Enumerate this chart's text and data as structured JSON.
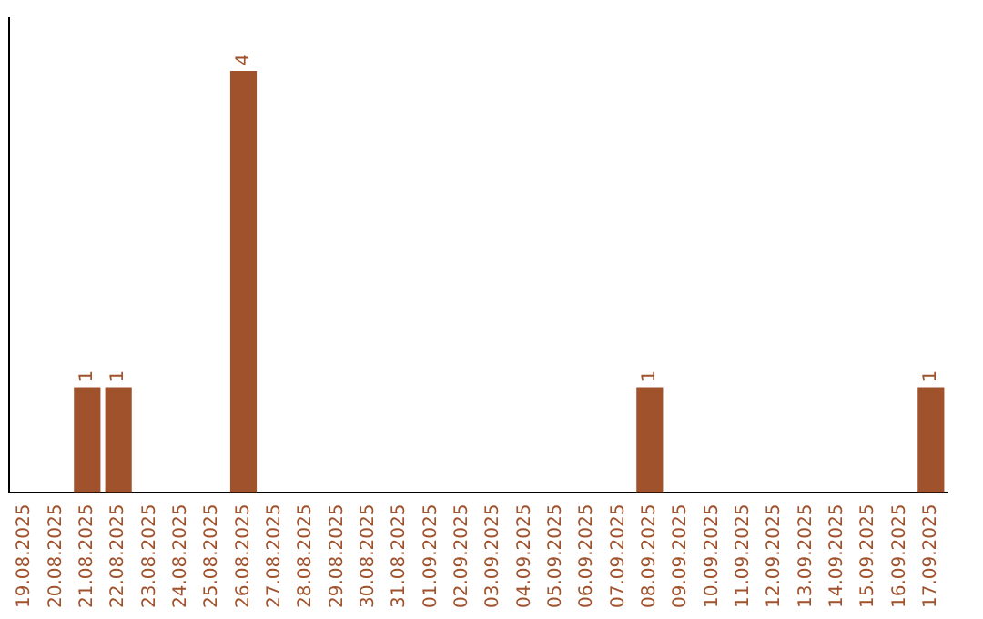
{
  "chart_data": {
    "type": "bar",
    "categories": [
      "19.08.2025",
      "20.08.2025",
      "21.08.2025",
      "22.08.2025",
      "23.08.2025",
      "24.08.2025",
      "25.08.2025",
      "26.08.2025",
      "27.08.2025",
      "28.08.2025",
      "29.08.2025",
      "30.08.2025",
      "31.08.2025",
      "01.09.2025",
      "02.09.2025",
      "03.09.2025",
      "04.09.2025",
      "05.09.2025",
      "06.09.2025",
      "07.09.2025",
      "08.09.2025",
      "09.09.2025",
      "10.09.2025",
      "11.09.2025",
      "12.09.2025",
      "13.09.2025",
      "14.09.2025",
      "15.09.2025",
      "16.09.2025",
      "17.09.2025"
    ],
    "values": [
      0,
      0,
      1,
      1,
      0,
      0,
      0,
      4,
      0,
      0,
      0,
      0,
      0,
      0,
      0,
      0,
      0,
      0,
      0,
      0,
      1,
      0,
      0,
      0,
      0,
      0,
      0,
      0,
      0,
      1
    ],
    "value_labels": [
      null,
      null,
      "1",
      "1",
      null,
      null,
      null,
      "4",
      null,
      null,
      null,
      null,
      null,
      null,
      null,
      null,
      null,
      null,
      null,
      null,
      "1",
      null,
      null,
      null,
      null,
      null,
      null,
      null,
      null,
      "1"
    ],
    "color": "#a0522d",
    "grid": false,
    "legend": false
  }
}
